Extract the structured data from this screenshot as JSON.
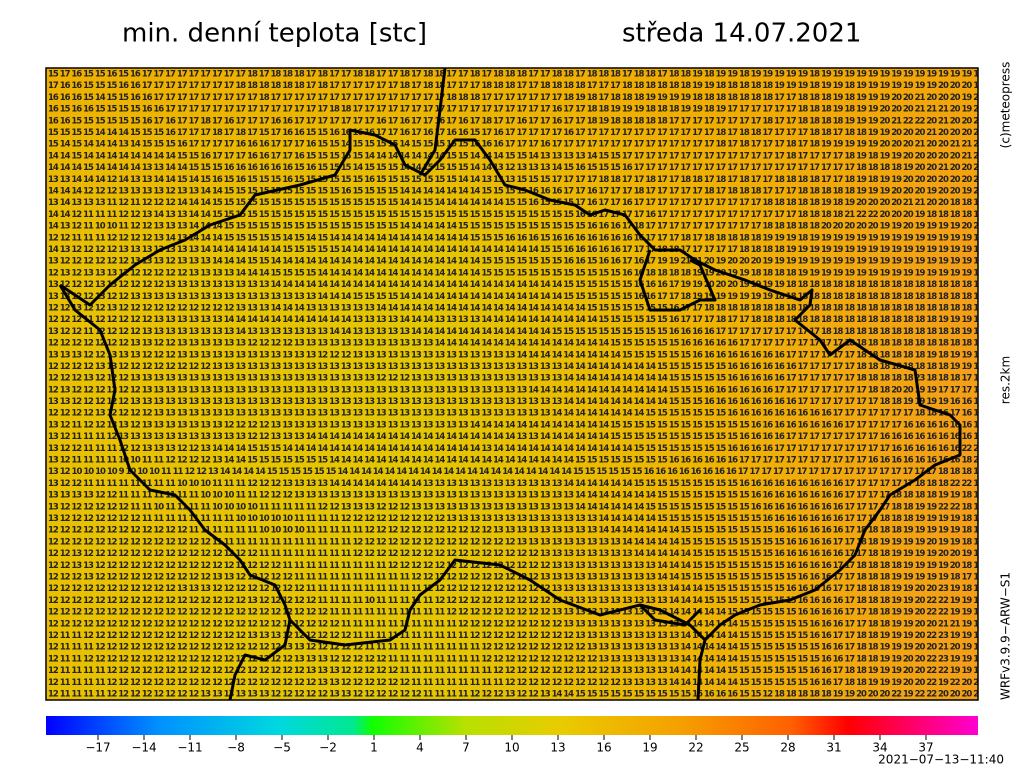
{
  "header": {
    "title": "min. denní teplota [stc]",
    "date": "středa 14.07.2021"
  },
  "side_labels": [
    "(c)meteopress",
    "res.2km",
    "WRFv3.9.9−ARW−S1"
  ],
  "timestamp": "2021−07−13−11:40",
  "map": {
    "rows": [
      "15 17 16 15 15 16 15 16 17 17 17 17 17 17 17 17 17 18 17 18 18 18 17 18 17 17 18 18 17 17 18 17 18 18 17 17 18 17 18 18 18 17 17 18 18 17 18 18 18 17 18 18 17 18 18 19 18 19 19 18 19 19 19 19 19 18 19 19 19 19 19 19 19 19 19 19 19 19 19 19",
      "17 16 16 15 15 15 16 16 17 17 17 17 17 17 17 17 18 18 18 18 18 18 17 18 17 17 17 17 17 17 18 17 18 18 17 17 17 18 18 18 17 17 18 18 18 18 17 17 17 18 18 18 18 18 18 19 19 18 18 18 18 18 19 19 19 18 19 19 18 19 19 19 19 19 19 19 20 20 20 19",
      "16 16 16 15 14 15 15 16 16 17 17 17 17 17 17 17 17 17 18 17 17 17 17 17 17 17 17 17 17 17 17 17 17 17 18 18 18 17 17 17 17 17 17 17 18 19 18 17 18 18 18 19 19 19 19 18 18 18 18 18 18 18 17 17 18 18 18 19 18 19 19 19 20 20 21 20 20 20 19 20",
      "16 15 16 16 15 15 15 15 16 16 17 17 17 17 17 17 17 17 17 17 17 17 17 17 18 18 17 17 17 17 17 17 17 17 17 17 17 17 17 17 17 17 17 16 17 17 18 18 19 19 19 18 18 18 19 19 18 19 17 17 17 17 17 17 18 18 18 19 18 19 19 20 20 20 21 21 21 20 19 20",
      "16 16 15 15 15 15 15 15 16 17 16 17 17 18 17 16 17 17 17 16 16 17 17 17 17 17 17 17 16 17 16 17 17 16 17 16 17 18 17 17 16 17 17 16 17 17 18 19 18 18 18 18 18 17 17 17 17 17 17 17 17 18 17 17 18 18 18 18 19 19 19 20 21 22 22 20 21 20 20 20",
      "15 15 15 15 14 14 14 15 15 15 16 17 17 17 18 17 18 17 15 17 16 16 15 15 16 16 16 16 17 17 16 17 16 17 16 16 15 17 16 17 17 17 17 17 16 17 17 17 17 17 17 17 17 17 17 17 17 18 17 18 18 17 17 17 17 18 18 17 18 18 19 19 20 20 20 21 20 20 20 20",
      "15 14 15 14 14 14 13 14 15 15 15 16 17 17 17 17 16 16 16 17 17 17 16 15 15 14 15 15 15 15 14 15 15 15 15 15 16 16 16 17 17 17 16 17 17 17 17 17 17 17 17 17 17 17 17 17 17 18 17 18 17 17 17 18 17 18 19 19 19 19 19 20 20 20 21 20 20 21 21 21",
      "14 14 15 14 14 14 14 14 14 14 14 15 15 16 17 17 17 16 16 17 17 16 15 15 15 15 15 14 14 14 14 14 14 14 15 15 14 14 14 15 15 14 13 13 13 13 14 15 15 17 17 17 17 17 17 17 17 17 17 17 17 17 17 18 17 17 17 17 18 19 18 19 19 20 20 20 20 20 21 21",
      "14 14 14 15 14 14 14 14 13 13 14 14 15 15 15 16 16 16 16 16 16 15 16 15 15 15 14 15 15 15 14 14 15 15 15 15 14 14 13 12 13 13 13 14 15 16 15 15 15 16 17 17 17 17 17 17 17 17 17 17 17 17 17 17 17 17 17 17 17 18 18 18 18 19 20 20 21 20 20 21",
      "13 13 14 14 14 12 14 13 13 14 14 15 14 15 16 15 16 15 15 15 16 15 15 15 15 15 15 16 15 15 15 15 15 15 15 14 14 13 13 13 15 15 15 17 17 17 17 18 18 17 17 18 17 17 18 18 17 18 17 18 17 17 18 18 18 18 17 17 18 19 18 19 19 20 20 20 20 20 20 20",
      "14 14 14 12 12 12 13 13 13 13 12 13 13 14 14 15 15 15 15 15 15 15 15 15 15 16 15 15 15 15 14 14 14 14 14 14 14 15 15 15 15 16 16 16 17 17 16 17 17 17 18 17 17 17 17 17 18 17 18 18 18 17 17 17 18 18 18 18 18 19 19 19 20 20 20 19 20 20 19 20",
      "13 14 13 13 13 11 12 11 12 12 12 14 14 14 15 15 15 15 15 15 15 15 15 15 15 15 15 15 15 15 14 14 15 14 14 14 14 14 14 15 15 16 15 15 15 17 16 17 17 16 17 17 17 17 17 17 17 17 17 17 17 18 18 18 18 18 19 18 19 20 20 20 20 21 21 20 20 18 18 18",
      "14 14 12 11 11 11 12 12 13 14 13 13 14 14 15 15 15 15 15 15 15 15 15 15 15 15 15 15 15 15 15 15 15 15 15 15 15 15 15 15 15 15 15 15 15 16 16 17 17 17 17 16 17 17 17 17 17 17 17 17 17 17 17 17 18 18 18 18 21 22 22 20 20 20 19 18 18 18 18 18",
      "14 13 12 11 10 10 11 12 12 13 13 13 14 14 14 15 15 15 15 15 15 15 15 15 15 15 15 15 15 15 14 14 14 14 14 15 15 15 15 15 15 15 15 15 15 15 16 16 16 17 18 17 17 17 17 17 17 17 17 17 17 18 18 18 18 18 20 20 20 20 20 19 19 20 19 19 19 19 20 20",
      "12 12 11 11 11 12 12 12 12 13 14 13 14 14 14 15 15 15 15 15 14 15 14 15 14 14 14 14 14 14 14 14 14 14 14 14 15 15 15 16 16 16 15 16 16 16 16 16 16 16 16 17 17 17 18 17 18 18 18 18 18 19 19 19 18 19 19 19 19 19 19 19 19 19 19 19 19 19 19 19",
      "14 13 12 12 12 12 13 13 13 13 13 13 13 14 14 14 14 14 14 14 15 15 15 15 15 14 14 14 14 14 14 14 14 14 14 14 14 14 14 14 14 14 15 15 16 16 16 16 16 17 17 17 18 18 17 17 17 17 17 18 18 18 18 19 19 19 19 19 19 19 19 19 19 19 19 19 19 19 19 19",
      "13 12 12 12 12 12 12 13 13 13 12 13 13 13 14 14 14 15 15 14 14 14 14 14 14 14 14 14 14 14 14 14 14 14 14 14 14 15 15 15 15 15 15 15 16 16 15 16 16 17 16 17 19 19 21 21 20 19 20 20 20 19 19 19 19 19 19 19 19 19 19 19 19 19 19 19 19 19 19 19",
      "12 13 12 13 13 13 12 12 12 12 12 12 13 13 13 13 14 14 14 15 15 15 15 14 14 14 14 14 14 14 14 14 14 14 14 14 14 15 15 15 15 15 15 15 15 15 15 15 15 16 16 18 18 18 18 19 19 20 19 19 18 18 18 18 19 19 19 19 19 19 19 19 19 19 19 19 19 19 19 19",
      "13 12 12 12 13 13 12 12 12 12 13 13 13 13 13 13 13 13 13 14 14 14 14 14 14 14 14 14 14 14 14 14 14 14 14 14 14 14 14 14 14 14 14 14 15 15 15 15 15 15 16 16 16 17 19 19 20 20 20 19 19 19 19 18 18 18 18 18 18 18 18 18 18 18 18 18 18 18 18 18",
      "13 13 12 12 13 12 12 13 13 13 13 13 13 13 13 13 13 13 13 13 13 13 13 14 14 14 15 15 15 15 14 14 14 14 14 14 14 14 14 14 14 14 14 14 15 15 15 15 15 15 16 16 17 17 18 19 19 19 19 19 19 19 18 18 18 18 18 18 18 18 18 18 18 18 18 18 18 18 18 17",
      "12 12 13 12 12 13 12 12 12 12 12 12 12 12 12 12 13 13 13 14 14 14 13 13 13 13 13 13 14 14 14 14 14 14 14 14 14 14 14 14 14 14 14 14 14 14 15 15 15 15 15 15 15 16 17 17 18 18 18 18 18 18 18 18 18 18 18 18 18 18 18 18 18 18 18 18 18 18 18 18",
      "12 12 12 11 12 12 12 12 12 13 13 13 13 13 13 14 14 14 14 14 14 14 14 14 14 14 13 13 13 13 14 14 14 13 13 13 13 14 14 14 14 14 14 14 14 14 14 15 15 15 15 15 15 16 17 17 17 18 17 17 18 18 18 18 18 18 18 18 18 18 18 18 18 18 18 18 19 19 19 19",
      "13 12 12 11 12 12 12 12 13 13 13 13 13 13 13 13 14 13 13 13 13 13 13 13 14 14 13 13 13 13 13 14 14 14 14 14 14 14 14 14 14 14 14 15 15 15 15 15 15 15 15 15 15 16 16 16 16 17 17 17 17 17 17 17 17 17 18 18 18 18 18 18 18 18 18 18 18 18 19 19",
      "12 12 12 12 12 12 12 13 13 12 12 13 13 13 13 13 13 12 12 12 12 13 13 13 13 13 13 13 13 13 13 13 13 14 14 14 14 14 14 14 14 14 14 14 14 14 14 14 15 15 15 15 15 15 16 16 16 16 16 17 17 17 17 17 17 17 17 17 18 18 18 18 18 18 18 18 18 18 18 19",
      "13 13 13 12 12 13 13 13 12 12 12 13 13 13 13 13 13 13 13 13 13 13 13 12 12 12 13 13 13 13 13 13 13 13 13 13 13 13 13 13 14 14 14 14 14 14 14 14 14 15 15 15 15 15 15 16 16 16 16 16 16 16 16 17 17 17 17 17 17 18 18 18 18 18 18 19 18 19 19 19",
      "12 12 12 12 13 13 12 12 12 12 12 12 12 12 13 13 13 13 13 13 13 13 13 13 13 13 13 13 13 13 13 13 13 13 13 13 13 13 13 13 13 13 13 13 14 14 14 14 14 14 14 14 15 15 15 15 15 15 16 16 16 16 16 16 17 17 17 17 17 18 18 18 18 18 18 18 18 19 19 19",
      "12 12 12 13 12 12 12 13 13 13 13 13 13 13 13 13 13 13 13 13 13 13 13 13 13 13 13 13 12 12 12 13 13 13 13 13 13 13 13 13 13 13 13 13 14 14 14 14 14 14 14 14 14 15 15 15 15 15 16 16 16 16 16 17 17 17 17 17 17 18 18 18 18 18 23 18 18 18 17 17",
      "12 13 12 12 12 12 12 12 13 13 13 13 13 13 13 13 13 13 13 13 13 13 13 13 13 13 13 13 13 13 13 13 13 13 13 13 13 13 13 13 13 14 14 14 14 14 14 14 14 14 14 14 14 15 15 15 16 16 16 16 16 16 17 17 17 17 17 17 17 17 18 18 20 20 19 19 17 17 17 17",
      "13 13 12 12 12 12 12 13 13 13 13 13 13 13 13 13 13 13 13 13 13 13 13 13 13 13 13 13 13 13 13 13 13 13 13 13 13 13 13 13 13 13 13 13 14 14 14 14 14 14 14 14 14 15 15 15 16 16 16 16 16 16 16 16 17 17 17 17 17 17 17 18 18 19 19 19 19 16 16 17",
      "12 12 12 12 13 12 12 12 12 13 13 13 13 13 13 13 13 13 13 13 13 13 13 13 13 13 13 13 13 13 13 13 13 13 13 13 13 13 13 13 13 13 13 14 14 14 14 14 14 14 14 15 15 15 15 15 15 15 16 16 16 16 16 16 16 16 16 17 17 17 17 17 17 17 18 18 16 17 16 17",
      "13 12 11 12 12 13 13 12 13 13 13 13 13 13 13 12 12 12 12 13 13 13 13 13 13 13 13 13 13 13 13 13 13 13 13 13 14 14 14 14 14 14 14 14 14 14 14 14 15 15 15 15 15 15 15 15 15 15 15 15 16 16 16 16 16 16 16 16 17 17 17 17 17 16 16 16 16 16 16 16",
      "13 12 11 11 11 12 13 13 13 13 13 13 13 13 13 13 13 12 12 13 13 13 14 14 14 14 14 14 14 14 14 14 14 14 14 14 14 14 14 14 13 13 14 14 14 14 14 14 15 15 15 15 15 15 15 15 15 15 15 16 16 16 16 17 17 17 17 17 17 17 17 16 16 16 16 16 16 16 16 16",
      "13 12 12 11 11 11 12 12 13 13 13 12 12 13 14 14 14 15 15 15 14 14 14 14 14 14 14 14 14 14 14 14 14 14 14 14 14 13 14 14 14 14 14 14 14 14 14 14 14 14 15 15 15 15 15 15 15 15 16 16 16 16 17 17 17 17 17 17 17 17 17 17 16 16 16 16 16 16 22 22",
      "13 12 11 11 11 11 10 10 11 11 12 12 12 12 13 14 14 15 15 15 15 15 15 15 14 14 14 14 14 14 14 14 14 14 14 14 14 14 14 14 14 14 14 14 14 15 15 15 15 15 15 15 15 16 16 16 16 16 16 17 17 17 17 17 17 17 17 17 17 17 16 16 16 16 16 16 16 16 18 21",
      "13 12 10 10 10 10 9 10 10 10 11 11 12 12 13 14 14 14 14 15 15 15 15 15 15 14 14 14 14 14 14 14 14 14 14 14 14 14 14 14 14 14 14 14 14 15 15 15 15 15 15 16 16 16 16 16 16 16 16 17 17 17 17 17 17 17 17 17 17 17 17 17 17 17 17 17 18 18 18 17",
      "13 12 12 11 11 11 11 11 11 11 11 10 10 10 11 11 11 12 12 12 13 13 13 13 14 14 14 14 14 14 14 14 13 13 13 13 13 13 13 13 13 13 13 13 14 14 14 14 14 14 15 15 15 15 15 15 15 15 15 16 16 16 16 16 16 16 16 16 17 17 17 17 17 17 18 18 18 22 22 17",
      "13 13 13 13 12 12 11 11 11 11 11 11 11 10 10 10 11 11 12 12 12 13 13 13 13 13 13 13 13 13 13 13 13 13 13 13 13 13 13 13 13 13 13 13 13 14 14 14 14 14 14 14 15 15 15 15 15 15 15 15 16 16 16 16 16 16 16 16 17 17 17 17 18 18 18 18 19 19 18 18",
      "13 12 12 12 12 12 12 11 11 10 11 11 11 11 10 10 10 10 11 11 11 11 11 12 12 13 13 13 12 12 12 13 13 13 13 13 13 13 13 13 13 13 13 13 13 14 14 14 14 14 14 15 15 15 15 15 15 15 15 15 16 16 16 16 16 16 16 16 17 17 17 17 18 18 19 19 22 22 18 18",
      "13 12 12 12 12 12 12 12 11 11 11 11 11 11 11 11 10 10 10 10 10 11 11 11 11 12 12 12 12 12 12 12 12 12 13 13 13 13 13 13 13 13 13 13 13 13 13 14 14 14 14 14 15 15 15 15 15 15 15 15 15 16 16 16 16 16 16 16 17 17 17 18 18 18 19 19 19 19 18 18",
      "12 12 12 12 12 12 12 12 12 12 12 12 11 11 11 11 11 11 10 10 10 10 11 11 11 11 11 12 12 12 12 12 12 12 12 12 12 12 13 13 13 13 13 13 13 13 13 14 14 14 14 14 14 14 15 15 15 15 15 15 15 15 16 16 16 16 16 16 17 18 18 18 18 19 19 19 19 19 18 18",
      "12 12 12 12 12 12 12 12 12 12 12 12 12 12 11 11 11 11 11 11 11 11 11 11 11 11 12 12 12 12 12 12 12 12 12 12 12 12 12 12 13 13 13 13 13 13 13 13 13 14 14 14 14 14 15 15 15 15 15 15 15 15 15 16 16 16 16 17 17 18 18 19 19 19 19 20 19 19 18 18",
      "12 12 13 12 12 12 12 12 12 12 12 12 12 12 12 12 12 12 11 11 11 11 11 11 11 11 12 12 12 12 12 12 12 12 12 12 12 12 12 12 12 12 13 13 13 13 13 13 13 13 14 14 14 14 14 15 15 15 15 15 15 15 16 16 16 16 16 16 17 17 18 18 19 19 19 19 20 20 19 18",
      "12 12 13 13 12 12 12 12 12 12 12 12 12 12 12 12 12 12 12 12 11 11 11 11 11 11 11 11 11 12 12 12 12 12 12 12 12 12 12 12 12 12 12 13 13 13 13 13 13 13 13 13 14 14 14 15 15 15 15 15 15 15 15 16 16 16 16 17 17 18 18 18 18 19 19 19 19 20 18 17",
      "12 12 12 13 12 12 12 12 12 12 12 12 12 12 13 13 12 12 12 12 12 11 11 11 11 11 11 11 11 11 11 12 12 12 12 12 12 12 12 12 12 12 13 13 13 13 13 13 13 13 13 13 14 14 15 15 15 15 15 15 15 15 15 15 16 16 16 17 17 18 18 18 19 19 19 19 19 18 17 18",
      "12 12 12 12 12 12 12 12 12 12 12 13 13 13 12 12 12 12 12 12 12 12 11 11 11 11 11 11 11 11 11 11 12 12 12 12 12 12 12 12 12 12 12 13 13 13 13 13 13 13 13 13 13 14 14 14 15 15 15 15 15 15 15 16 16 16 16 17 17 18 18 18 19 19 20 20 23 19 18 18",
      "12 12 12 12 12 12 12 12 12 12 12 12 12 12 12 12 12 13 12 12 12 12 12 11 11 11 11 10 11 11 11 11 11 12 12 12 12 12 12 12 12 12 12 13 13 13 13 13 13 13 13 13 13 14 14 14 15 15 15 15 15 15 15 15 16 16 16 16 17 18 18 18 19 19 20 22 22 19 19 19",
      "12 12 12 12 12 12 12 12 12 12 12 12 12 12 12 12 12 12 12 12 12 12 12 12 11 11 11 11 11 11 11 11 11 11 12 12 12 12 12 12 12 12 12 13 13 13 13 13 13 13 13 13 13 14 14 14 14 14 15 15 15 15 15 15 16 16 16 16 17 17 18 18 19 19 20 22 22 19 19 19",
      "12 12 12 12 12 12 12 12 12 12 12 12 12 12 12 12 12 12 12 12 12 12 12 12 12 11 11 11 11 11 11 11 11 11 11 12 12 12 12 12 12 12 12 12 13 13 13 13 13 13 13 13 13 13 14 14 14 14 14 15 15 15 15 15 15 16 16 16 17 17 18 18 19 19 20 20 21 21 19 19",
      "12 11 11 12 12 12 12 12 12 12 12 12 12 12 12 12 12 13 13 13 12 12 12 12 12 12 11 11 11 11 11 11 11 11 11 11 12 12 12 12 12 12 12 12 12 13 13 13 13 13 13 13 13 13 14 14 14 14 14 15 15 15 15 15 15 16 16 17 17 18 18 19 19 19 20 22 23 19 19 19",
      "12 11 11 11 12 12 12 12 12 12 12 12 12 12 12 12 12 12 12 12 13 13 12 12 12 12 12 11 11 11 11 11 11 11 11 11 11 12 12 12 12 12 12 12 12 12 13 13 13 13 13 13 13 13 14 14 14 14 14 15 15 15 15 15 15 15 16 16 17 18 18 19 19 19 20 20 21 20 19 19",
      "12 11 11 12 12 12 12 12 12 12 12 12 12 12 12 12 12 12 12 12 12 13 13 13 12 12 12 12 12 11 11 11 11 11 11 11 11 12 12 12 12 12 12 12 12 12 12 13 13 13 13 13 13 13 14 14 14 14 14 15 15 15 15 15 15 15 16 16 17 18 18 19 19 20 20 22 23 19 19 19",
      "12 11 11 11 11 12 12 12 12 12 12 12 12 12 12 12 12 12 12 12 12 12 13 13 13 12 12 12 12 12 11 11 11 11 11 11 11 11 12 12 12 12 12 12 12 12 12 12 13 13 13 13 13 14 14 14 14 14 15 15 15 15 15 15 15 16 16 17 18 18 19 19 19 20 20 22 22 19 19 19",
      "12 11 11 11 11 12 12 12 12 12 12 12 12 12 12 12 12 12 12 12 12 12 12 13 13 12 12 12 12 12 12 11 11 11 11 11 11 11 11 12 12 12 12 12 12 12 12 12 12 13 13 13 13 14 14 14 14 14 14 15 15 15 15 15 15 16 16 17 18 18 19 19 19 20 20 22 19 22 20 20",
      "12 11 11 11 11 12 12 12 12 12 12 12 12 13 13 13 13 13 13 12 12 12 12 12 13 13 12 12 12 12 12 12 11 11 11 11 12 12 12 13 12 12 13 14 14 15 15 15 15 15 15 15 15 15 15 16 16 16 16 15 15 12 18 18 18 18 18 19 19 20 20 20 22 19 22 22 20 20 20 20"
    ]
  },
  "colorbar": {
    "range": [
      -20,
      40
    ],
    "ticks": [
      {
        "value": -17,
        "label": "−17"
      },
      {
        "value": -14,
        "label": "−14"
      },
      {
        "value": -11,
        "label": "−11"
      },
      {
        "value": -8,
        "label": "−8"
      },
      {
        "value": -5,
        "label": "−5"
      },
      {
        "value": -2,
        "label": "−2"
      },
      1,
      4,
      7,
      10,
      13,
      16,
      19,
      22,
      25,
      28,
      31,
      34,
      37
    ]
  }
}
